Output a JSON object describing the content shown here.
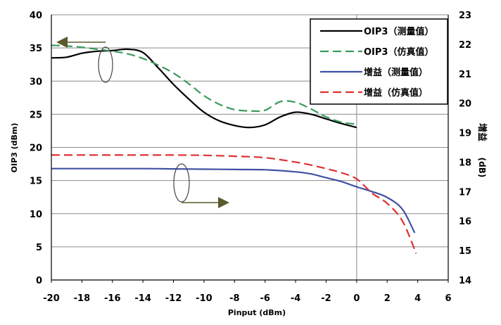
{
  "chart_data": {
    "type": "line",
    "xlabel": "Pinput (dBm)",
    "ylabel_left": "OIP3 (dBm)",
    "ylabel_right_top": "增益",
    "ylabel_right_bottom": "(dB)",
    "xlim": [
      -20,
      6
    ],
    "ylim_left": [
      0,
      40
    ],
    "ylim_right": [
      14,
      23
    ],
    "x_ticks": [
      -20,
      -18,
      -16,
      -14,
      -12,
      -10,
      -8,
      -6,
      -4,
      -2,
      0,
      2,
      4,
      6
    ],
    "y_left_ticks": [
      0,
      5,
      10,
      15,
      20,
      25,
      30,
      35,
      40
    ],
    "y_right_ticks": [
      14,
      15,
      16,
      17,
      18,
      19,
      20,
      21,
      22,
      23
    ],
    "grid": true,
    "legend_position": "top-right",
    "series": [
      {
        "name": "OIP3（测量值）",
        "axis": "left",
        "color": "#000000",
        "dash": "solid",
        "x": [
          -20,
          -19,
          -18,
          -17,
          -16,
          -15,
          -14,
          -13,
          -12,
          -11,
          -10,
          -9,
          -8,
          -7,
          -6,
          -5,
          -4,
          -3,
          -2,
          -1,
          0
        ],
        "y": [
          33.5,
          33.6,
          34.2,
          34.5,
          34.6,
          34.8,
          34.3,
          32.0,
          29.5,
          27.3,
          25.3,
          24.0,
          23.3,
          23.0,
          23.4,
          24.6,
          25.3,
          25.0,
          24.3,
          23.6,
          23.0
        ]
      },
      {
        "name": "OIP3（仿真值）",
        "axis": "left",
        "color": "#3a9a5c",
        "dash": "dashed",
        "x": [
          -20,
          -19,
          -18,
          -17,
          -16,
          -15,
          -14,
          -13,
          -12,
          -11,
          -10,
          -9,
          -8,
          -7,
          -6,
          -5,
          -4,
          -3,
          -2,
          -1,
          0
        ],
        "y": [
          35.4,
          35.3,
          35.1,
          34.8,
          34.5,
          34.1,
          33.4,
          32.4,
          31.2,
          29.6,
          27.8,
          26.5,
          25.7,
          25.5,
          25.6,
          26.9,
          26.8,
          25.8,
          24.6,
          23.8,
          23.5
        ]
      },
      {
        "name": "增益（测量值）",
        "axis": "right",
        "color": "#3f51a3",
        "dash": "solid",
        "x": [
          -20,
          -18,
          -16,
          -14,
          -12,
          -10,
          -8,
          -6,
          -4,
          -3,
          -2,
          -1,
          0,
          1,
          2,
          3,
          3.8
        ],
        "y": [
          17.78,
          17.78,
          17.78,
          17.78,
          17.77,
          17.76,
          17.75,
          17.74,
          17.67,
          17.6,
          17.47,
          17.34,
          17.16,
          17.0,
          16.8,
          16.4,
          15.6
        ]
      },
      {
        "name": "增益（仿真值）",
        "axis": "right",
        "color": "#e03030",
        "dash": "dashed",
        "x": [
          -20,
          -18,
          -16,
          -14,
          -12,
          -10,
          -8,
          -6,
          -4,
          -3,
          -2,
          -1,
          0,
          1,
          2,
          3,
          3.9
        ],
        "y": [
          18.24,
          18.24,
          18.24,
          18.24,
          18.24,
          18.23,
          18.2,
          18.15,
          18.0,
          17.9,
          17.78,
          17.64,
          17.43,
          16.95,
          16.6,
          16.0,
          14.9
        ]
      }
    ]
  }
}
